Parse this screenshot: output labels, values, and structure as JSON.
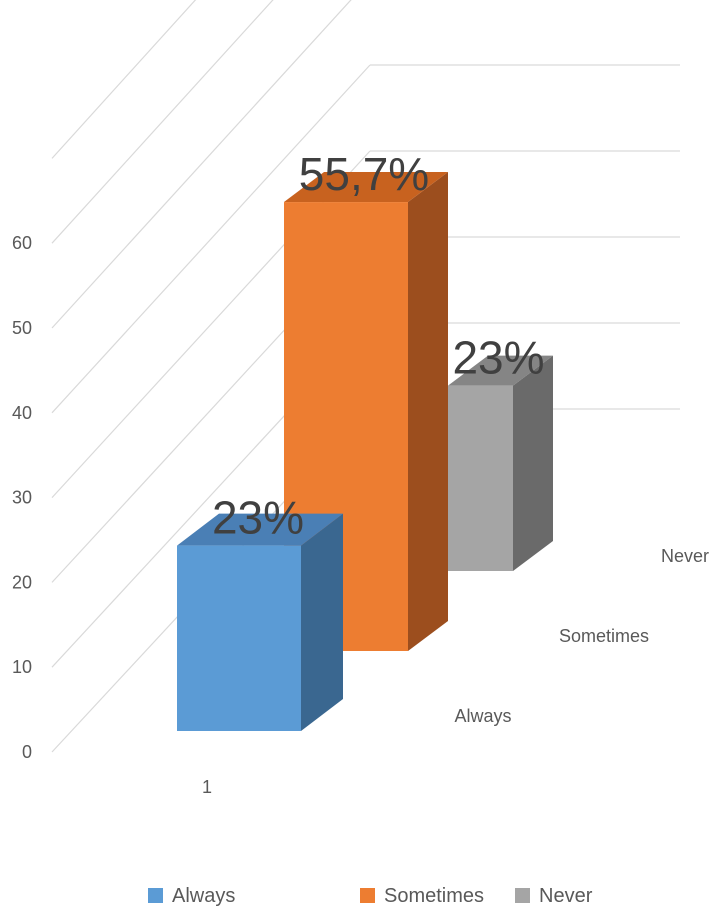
{
  "chart_data": {
    "type": "bar",
    "categories": [
      "1"
    ],
    "series": [
      {
        "name": "Always",
        "values": [
          23
        ],
        "data_label": "23%",
        "color": "#5B9BD5",
        "side_color": "#3A6790",
        "top_color": "#4A7FB5"
      },
      {
        "name": "Sometimes",
        "values": [
          55.7
        ],
        "data_label": "55,7%",
        "color": "#ED7D31",
        "side_color": "#9C4E1E",
        "top_color": "#C8621F"
      },
      {
        "name": "Never",
        "values": [
          23
        ],
        "data_label": "23%",
        "color": "#A5A5A5",
        "side_color": "#6A6A6A",
        "top_color": "#858585"
      }
    ],
    "yticks": [
      0,
      10,
      20,
      30,
      40,
      50,
      60
    ],
    "ylim": [
      0,
      70
    ],
    "grid": true,
    "projection": "3d",
    "legend_position": "bottom",
    "title": "",
    "xlabel": "",
    "ylabel": ""
  }
}
